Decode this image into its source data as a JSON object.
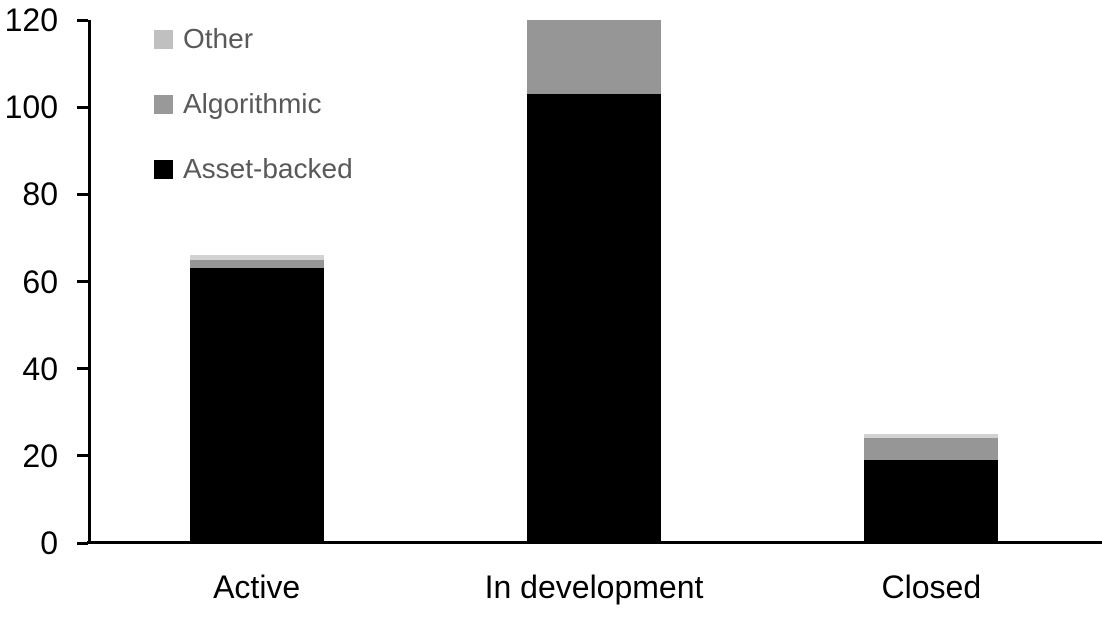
{
  "chart_data": {
    "type": "bar",
    "subtype": "stacked-vertical",
    "title": "",
    "xlabel": "",
    "ylabel": "",
    "categories": [
      "Active",
      "In development",
      "Closed"
    ],
    "series": [
      {
        "name": "Asset-backed",
        "color": "#000000",
        "legend_color": "#000000",
        "values": [
          63,
          103,
          19
        ]
      },
      {
        "name": "Algorithmic",
        "color": "#969696",
        "legend_color": "#999999",
        "values": [
          2,
          17,
          5
        ]
      },
      {
        "name": "Other",
        "color": "#d2d2d2",
        "legend_color": "#c0c0c0",
        "values": [
          1,
          0,
          1
        ]
      }
    ],
    "stack_totals": [
      66,
      120,
      25
    ],
    "yticks": [
      0,
      20,
      40,
      60,
      80,
      100,
      120
    ],
    "ylim": [
      0,
      120
    ],
    "grid": false,
    "legend": {
      "position": "top-left-inside",
      "order": [
        "Other",
        "Algorithmic",
        "Asset-backed"
      ],
      "text_color": "#595959"
    },
    "axis_color": "#000000",
    "tick_label_color": "#000000",
    "category_label_color": "#000000"
  }
}
